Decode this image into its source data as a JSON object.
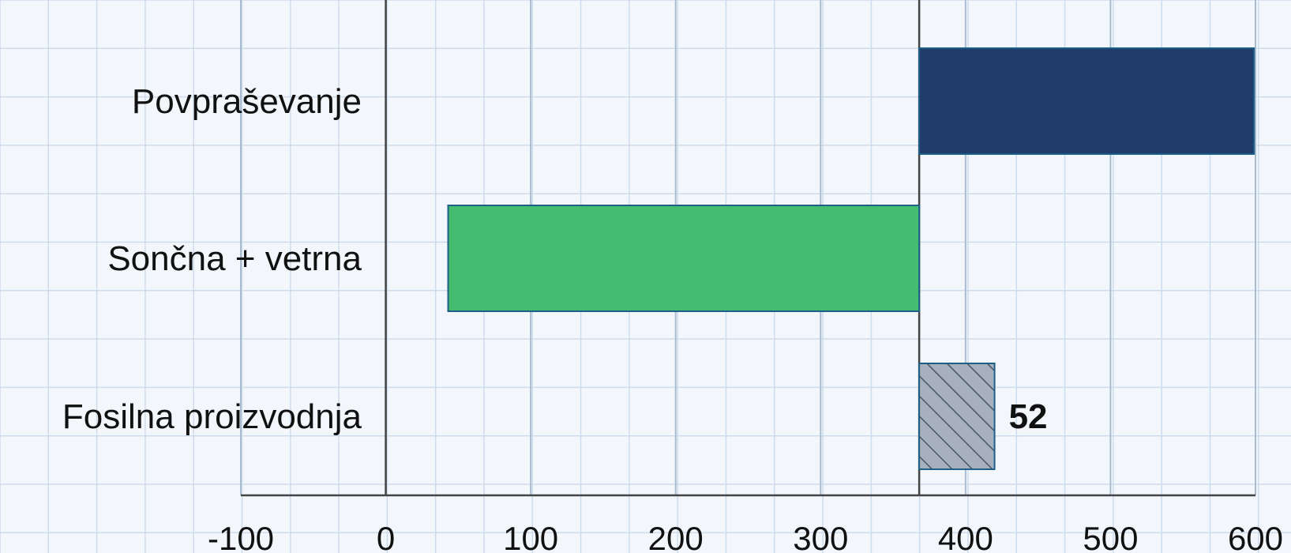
{
  "chart_data": {
    "type": "bar",
    "orientation": "horizontal",
    "categories": [
      "Povpraševanje",
      "Sončna + vetrna",
      "Fosilna proizvodnja"
    ],
    "bars": [
      {
        "category": "Povpraševanje",
        "start": 368,
        "end": 599,
        "label": "",
        "style": "solid"
      },
      {
        "category": "Sončna + vetrna",
        "start": 368,
        "end": 43,
        "label": "",
        "style": "solid"
      },
      {
        "category": "Fosilna proizvodnja",
        "start": 368,
        "end": 420,
        "label": "52",
        "style": "hatched"
      }
    ],
    "xlim": [
      -100,
      600
    ],
    "xticks": [
      -100,
      0,
      100,
      200,
      300,
      400,
      500,
      600
    ],
    "xtick_labels": [
      "-100",
      "0",
      "100",
      "200",
      "300",
      "400",
      "500",
      "600"
    ],
    "grid": true,
    "baseline": 368,
    "colors": {
      "background": "#f3f7fc",
      "grid_major": "#a9bccf",
      "grid_minor": "#cddced",
      "bar_demand": "#1f3c6b",
      "bar_renewables": "#45bd70",
      "bar_fossil": "#a7b1bd",
      "bar_border": "#1f5f86",
      "axis": "#444444"
    }
  }
}
